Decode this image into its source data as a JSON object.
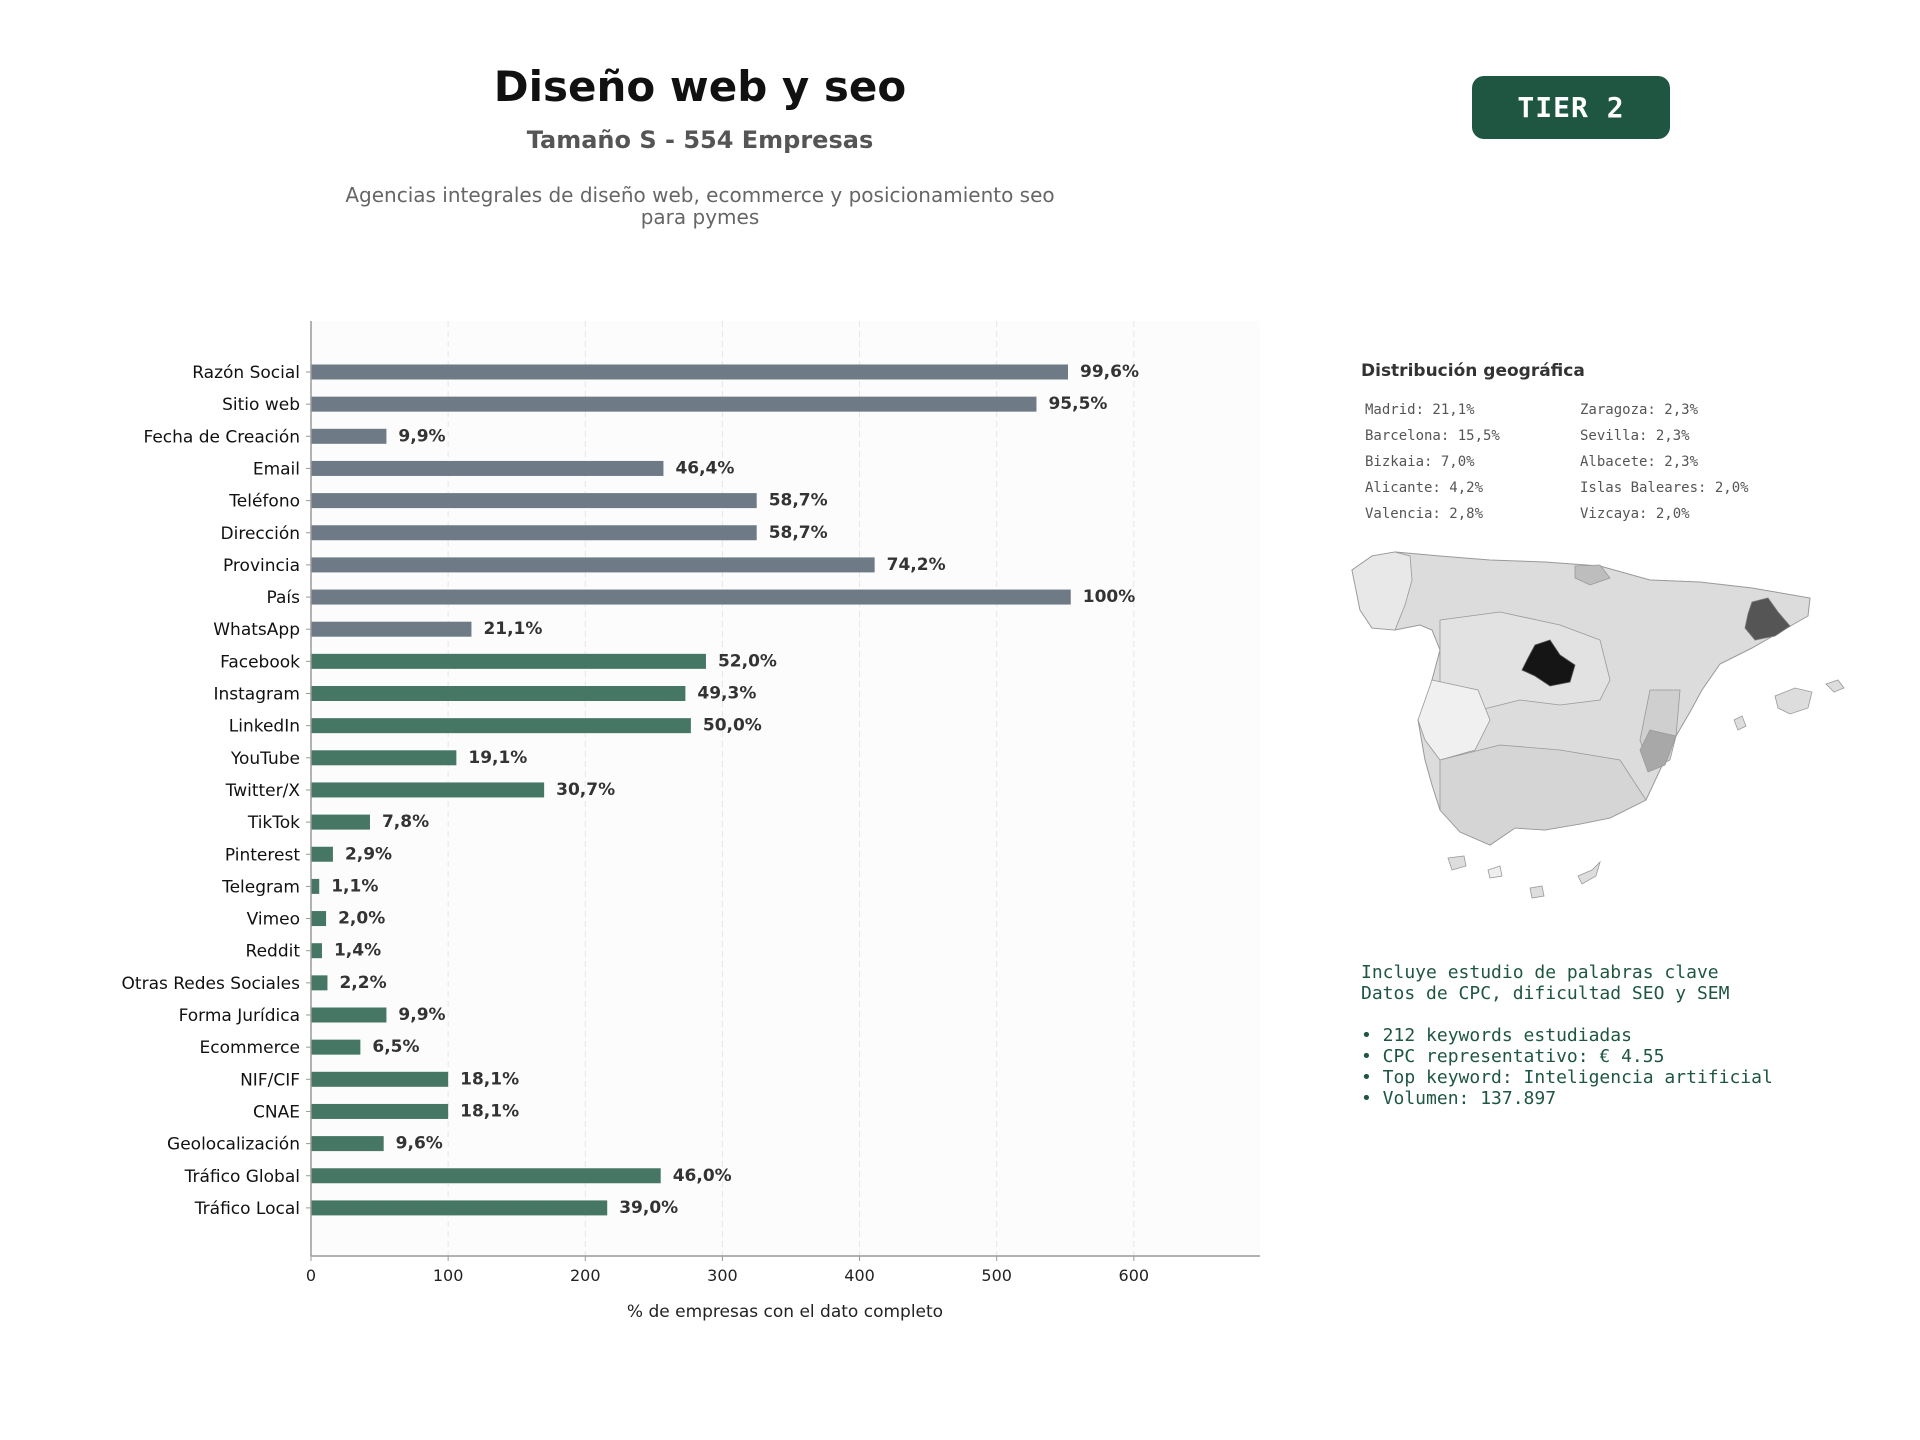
{
  "header": {
    "title": "Diseño web y seo",
    "subtitle": "Tamaño S - 554 Empresas",
    "description_line1": "Agencias integrales de diseño web, ecommerce y posicionamiento seo",
    "description_line2": "para pymes",
    "tier_badge": "TIER 2"
  },
  "colors": {
    "bar_gray": "#6e7b86",
    "bar_green": "#467764",
    "accent": "#1f5641"
  },
  "chart_data": {
    "type": "bar",
    "orientation": "horizontal",
    "xlabel": "% de empresas con el dato completo",
    "xlim": [
      0,
      692
    ],
    "xticks": [
      0,
      100,
      200,
      300,
      400,
      500,
      600
    ],
    "grid": "vertical dashed",
    "categories": [
      "Razón Social",
      "Sitio web",
      "Fecha de Creación",
      "Email",
      "Teléfono",
      "Dirección",
      "Provincia",
      "País",
      "WhatsApp",
      "Facebook",
      "Instagram",
      "LinkedIn",
      "YouTube",
      "Twitter/X",
      "TikTok",
      "Pinterest",
      "Telegram",
      "Vimeo",
      "Reddit",
      "Otras Redes Sociales",
      "Forma Jurídica",
      "Ecommerce",
      "NIF/CIF",
      "CNAE",
      "Geolocalización",
      "Tráfico Global",
      "Tráfico Local"
    ],
    "values": [
      552,
      529,
      55,
      257,
      325,
      325,
      411,
      554,
      117,
      288,
      273,
      277,
      106,
      170,
      43,
      16,
      6,
      11,
      8,
      12,
      55,
      36,
      100,
      100,
      53,
      255,
      216
    ],
    "labels": [
      "99,6%",
      "95,5%",
      "9,9%",
      "46,4%",
      "58,7%",
      "58,7%",
      "74,2%",
      "100%",
      "21,1%",
      "52,0%",
      "49,3%",
      "50,0%",
      "19,1%",
      "30,7%",
      "7,8%",
      "2,9%",
      "1,1%",
      "2,0%",
      "1,4%",
      "2,2%",
      "9,9%",
      "6,5%",
      "18,1%",
      "18,1%",
      "9,6%",
      "46,0%",
      "39,0%"
    ],
    "groups": [
      "gray",
      "gray",
      "gray",
      "gray",
      "gray",
      "gray",
      "gray",
      "gray",
      "gray",
      "green",
      "green",
      "green",
      "green",
      "green",
      "green",
      "green",
      "green",
      "green",
      "green",
      "green",
      "green",
      "green",
      "green",
      "green",
      "green",
      "green",
      "green"
    ]
  },
  "geo": {
    "title": "Distribución geográfica",
    "left": [
      "Madrid: 21,1%",
      "Barcelona: 15,5%",
      "Bizkaia: 7,0%",
      "Alicante: 4,2%",
      "Valencia: 2,8%"
    ],
    "right": [
      "Zaragoza: 2,3%",
      "Sevilla: 2,3%",
      "Albacete: 2,3%",
      "Islas Baleares: 2,0%",
      "Vizcaya: 2,0%"
    ]
  },
  "keywords": {
    "line1": "Incluye estudio de palabras clave",
    "line2": "Datos de CPC, dificultad SEO y SEM",
    "bullet1": "• 212 keywords estudiadas",
    "bullet2": "• CPC representativo: € 4.55",
    "bullet3": "• Top keyword: Inteligencia artificial",
    "bullet4": "• Volumen: 137.897"
  }
}
